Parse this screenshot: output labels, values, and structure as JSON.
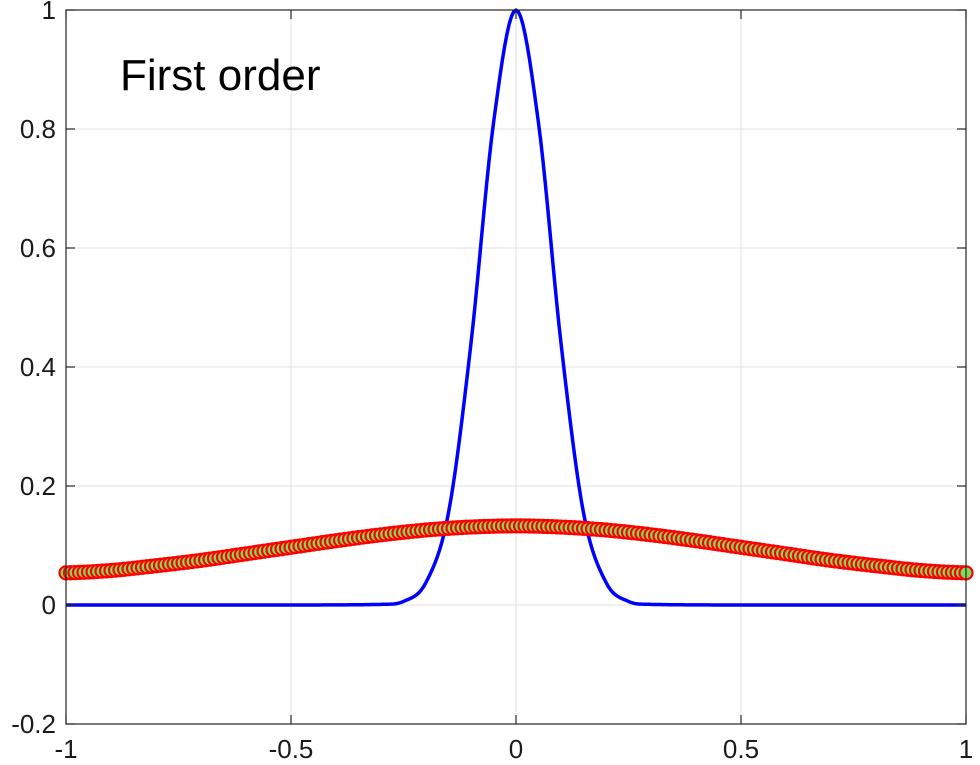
{
  "chart_data": {
    "type": "line",
    "title": "",
    "xlabel": "",
    "ylabel": "",
    "xlim": [
      -1,
      1
    ],
    "ylim": [
      -0.2,
      1
    ],
    "grid": true,
    "x_ticks": [
      -1,
      -0.5,
      0,
      0.5,
      1
    ],
    "x_tick_labels": [
      "-1",
      "-0.5",
      "0",
      "0.5",
      "1"
    ],
    "y_ticks": [
      -0.2,
      0,
      0.2,
      0.4,
      0.6,
      0.8,
      1
    ],
    "y_tick_labels": [
      "-0.2",
      "0",
      "0.2",
      "0.4",
      "0.6",
      "0.8",
      "1"
    ],
    "annotation": "First order",
    "series": [
      {
        "style": "line",
        "color": "#0000ff",
        "x": [
          -1,
          -0.5,
          -0.3,
          -0.25,
          -0.2,
          -0.15,
          -0.1,
          -0.05,
          0,
          0.05,
          0.1,
          0.15,
          0.2,
          0.25,
          0.3,
          0.5,
          1
        ],
        "y": [
          0,
          0,
          0.001,
          0.006,
          0.038,
          0.155,
          0.44,
          0.81,
          1,
          0.81,
          0.44,
          0.155,
          0.038,
          0.006,
          0.001,
          0,
          0
        ]
      },
      {
        "style": "markers",
        "edge_color": "#ff0000",
        "face_color": "#7ddc5a",
        "x": [
          -1,
          -0.9,
          -0.8,
          -0.7,
          -0.6,
          -0.5,
          -0.4,
          -0.3,
          -0.2,
          -0.1,
          0,
          0.1,
          0.2,
          0.3,
          0.4,
          0.5,
          0.6,
          0.7,
          0.8,
          0.9,
          1
        ],
        "y": [
          0.054,
          0.058,
          0.066,
          0.075,
          0.086,
          0.097,
          0.108,
          0.118,
          0.126,
          0.131,
          0.133,
          0.131,
          0.126,
          0.118,
          0.108,
          0.097,
          0.086,
          0.075,
          0.066,
          0.058,
          0.054
        ]
      }
    ]
  }
}
